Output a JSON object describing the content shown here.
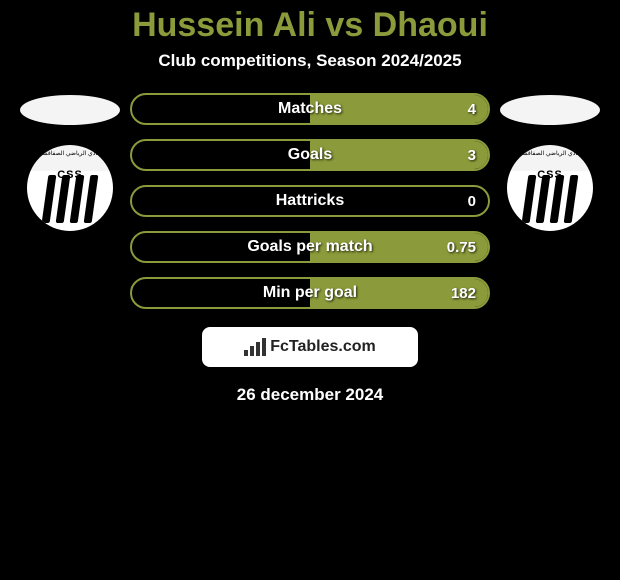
{
  "colors": {
    "accent": "#8b9a3a",
    "bg": "#000000",
    "brand_bg": "#ffffff",
    "flag_left": "#f4f4f4",
    "flag_right": "#f4f4f4",
    "badge_top": "#f4f4f4",
    "badge_bottom": "#ffffff"
  },
  "title": "Hussein Ali vs Dhaoui",
  "subtitle": "Club competitions, Season 2024/2025",
  "left": {
    "flag_color": "#f4f4f4",
    "club_initials": "CSS",
    "club_arabic": "النادي الرياضي الصفاقسي"
  },
  "right": {
    "flag_color": "#f4f4f4",
    "club_initials": "CSS",
    "club_arabic": "النادي الرياضي الصفاقسي"
  },
  "stats": [
    {
      "label": "Matches",
      "left_val": "",
      "right_val": "4",
      "left_pct": 0,
      "right_pct": 100
    },
    {
      "label": "Goals",
      "left_val": "",
      "right_val": "3",
      "left_pct": 0,
      "right_pct": 100
    },
    {
      "label": "Hattricks",
      "left_val": "",
      "right_val": "0",
      "left_pct": 0,
      "right_pct": 0
    },
    {
      "label": "Goals per match",
      "left_val": "",
      "right_val": "0.75",
      "left_pct": 0,
      "right_pct": 100
    },
    {
      "label": "Min per goal",
      "left_val": "",
      "right_val": "182",
      "left_pct": 0,
      "right_pct": 100
    }
  ],
  "brand": "FcTables.com",
  "date": "26 december 2024"
}
